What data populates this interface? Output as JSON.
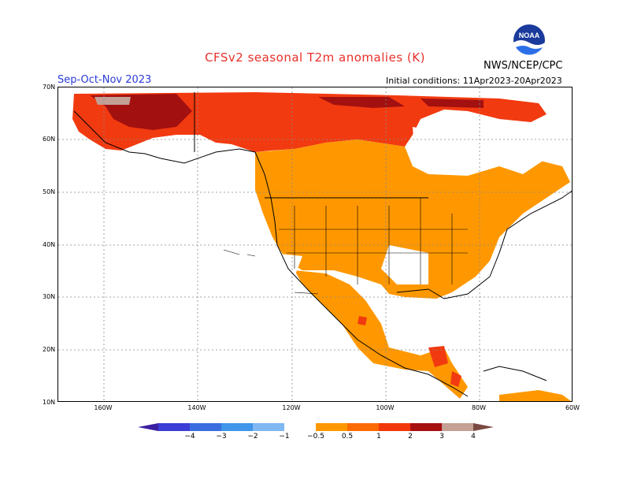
{
  "title": "CFSv2 seasonal T2m anomalies (K)",
  "agency": "NWS/NCEP/CPC",
  "season": "Sep-Oct-Nov 2023",
  "initial_conditions": "Initial conditions: 11Apr2023-20Apr2023",
  "logo_text": "NOAA",
  "lat_labels": [
    "70N",
    "60N",
    "50N",
    "40N",
    "30N",
    "20N",
    "10N"
  ],
  "lon_labels": [
    "160W",
    "140W",
    "120W",
    "100W",
    "80W",
    "60W"
  ],
  "colorbar": {
    "colors": [
      "#3a1fa0",
      "#3c3dd6",
      "#3a6ee0",
      "#3f96ea",
      "#7fb8f2",
      "#ffffff",
      "#ff9800",
      "#ff6a00",
      "#f2380a",
      "#a81010",
      "#c4a095",
      "#7a4a42"
    ],
    "labels": [
      "−4",
      "−3",
      "−2",
      "−1",
      "−0.5",
      "0.5",
      "1",
      "2",
      "3",
      "4"
    ]
  }
}
